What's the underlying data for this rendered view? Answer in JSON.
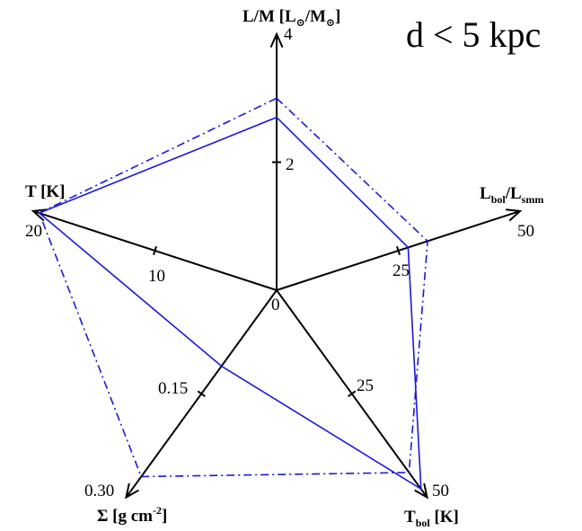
{
  "chart_data": {
    "type": "radar",
    "title": "d < 5 kpc",
    "center_label": "0",
    "axes": [
      {
        "key": "lm",
        "label_main": "L/M [L",
        "label_sub": "",
        "label_sym1": "⊙",
        "label_mid": "/M",
        "label_sym2": "⊙",
        "label_end": "]",
        "max": 4,
        "max_label": "4",
        "mid": 2,
        "mid_label": "2"
      },
      {
        "key": "lbol",
        "label_main": "L",
        "label_sub": "bol",
        "label_mid": "/L",
        "label_sub2": "smm",
        "max": 50,
        "max_label": "50",
        "mid": 25,
        "mid_label": "25"
      },
      {
        "key": "tbol",
        "label_main": "T",
        "label_sub": "bol",
        "label_end": " [K]",
        "max": 50,
        "max_label": "50",
        "mid": 25,
        "mid_label": "25"
      },
      {
        "key": "sigma",
        "label_main": "Σ [g cm",
        "label_sup": "-2",
        "label_end": "]",
        "max": 0.3,
        "max_label": "0.30",
        "mid": 0.15,
        "mid_label": "0.15"
      },
      {
        "key": "t",
        "label_main": "T [K]",
        "max": 20,
        "max_label": "20",
        "mid": 10,
        "mid_label": "10"
      }
    ],
    "series": [
      {
        "style": "solid",
        "color": "#1a1ad8",
        "values": [
          2.7,
          27.0,
          48.0,
          0.11,
          19.5
        ]
      },
      {
        "style": "dashdot",
        "color": "#1a1ad8",
        "values": [
          3.0,
          31.0,
          44.0,
          0.27,
          19.5
        ]
      }
    ]
  }
}
